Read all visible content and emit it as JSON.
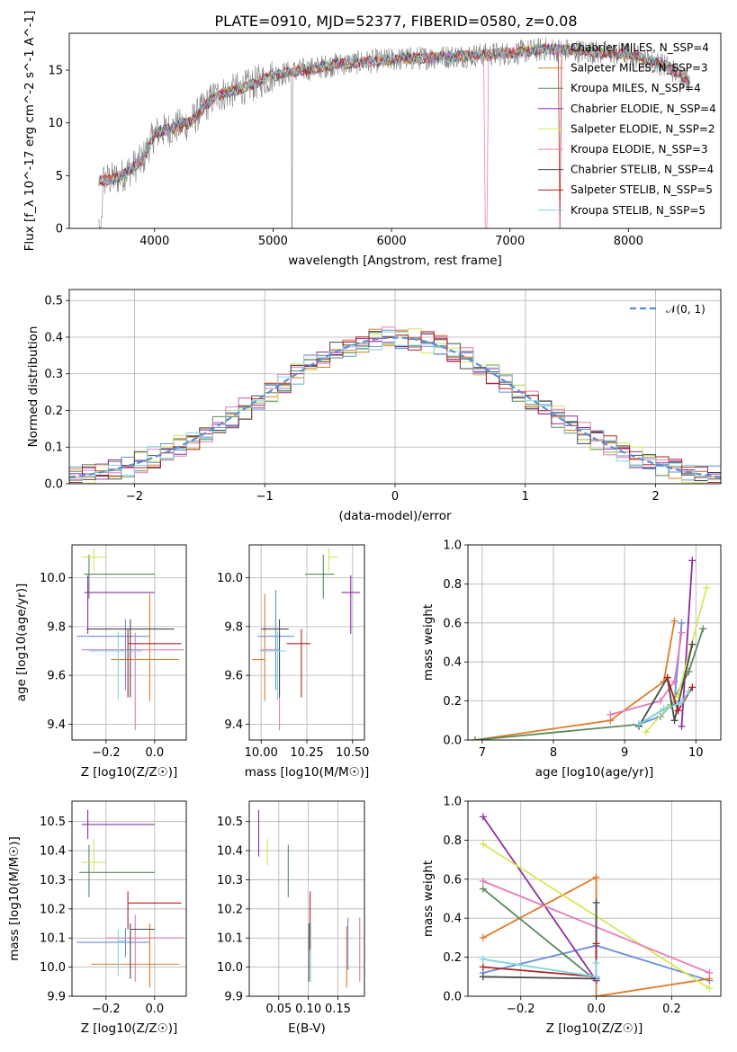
{
  "figure_title": "PLATE=0910, MJD=52377, FIBERID=0580, z=0.08",
  "colors": [
    "#6a8fd8",
    "#e07b2a",
    "#5a8a5a",
    "#8e2fa3",
    "#d4e85a",
    "#e57bb8",
    "#4a4a4a",
    "#b22222",
    "#7fd6e0"
  ],
  "chart_data": [
    {
      "id": "spectrum",
      "type": "line",
      "title": "PLATE=0910, MJD=52377, FIBERID=0580, z=0.08",
      "xlabel": "wavelength [Angstrom, rest frame]",
      "ylabel": "Flux [f_λ 10^-17 erg cm^-2 s^-1 A^-1]",
      "xlim": [
        3280,
        8780
      ],
      "ylim": [
        0,
        18.5
      ],
      "xticks": [
        4000,
        5000,
        6000,
        7000,
        8000
      ],
      "yticks": [
        0,
        5,
        10,
        15
      ],
      "grid": false,
      "legend_position": "top-right",
      "data_color": "#808080",
      "continuum": [
        [
          3530,
          4.5
        ],
        [
          3700,
          4.8
        ],
        [
          3900,
          6.5
        ],
        [
          4000,
          9
        ],
        [
          4300,
          10
        ],
        [
          4500,
          12.5
        ],
        [
          4800,
          13.5
        ],
        [
          5000,
          14.5
        ],
        [
          5500,
          15.5
        ],
        [
          6000,
          16
        ],
        [
          6500,
          16.3
        ],
        [
          7000,
          16.6
        ],
        [
          7300,
          17
        ],
        [
          7600,
          16.8
        ],
        [
          8000,
          16.5
        ],
        [
          8300,
          15.5
        ],
        [
          8520,
          14
        ]
      ],
      "legend": [
        "Chabrier MILES, N_SSP=4",
        "Salpeter MILES, N_SSP=3",
        "Kroupa MILES, N_SSP=4",
        "Chabrier ELODIE, N_SSP=4",
        "Salpeter ELODIE, N_SSP=2",
        "Kroupa ELODIE, N_SSP=3",
        "Chabrier STELIB, N_SSP=4",
        "Salpeter STELIB, N_SSP=5",
        "Kroupa STELIB, N_SSP=5"
      ]
    },
    {
      "id": "residuals",
      "type": "line",
      "xlabel": "(data-model)/error",
      "ylabel": "Normed distribution",
      "xlim": [
        -2.5,
        2.5
      ],
      "ylim": [
        0,
        0.53
      ],
      "xticks": [
        -2,
        -1,
        0,
        1,
        2
      ],
      "yticks": [
        0.0,
        0.1,
        0.2,
        0.3,
        0.4,
        0.5
      ],
      "grid": true,
      "legend_position": "top-right",
      "gaussian_label": "𝒩(0, 1)",
      "gaussian_color": "#5b8fd4"
    },
    {
      "id": "age-vs-z",
      "type": "scatter",
      "xlabel": "Z [log10(Z/Z☉)]",
      "ylabel": "age [log10(age/yr)]",
      "xlim": [
        -0.34,
        0.13
      ],
      "ylim": [
        9.335,
        10.135
      ],
      "xticks": [
        -0.2,
        0.0
      ],
      "yticks": [
        9.4,
        9.6,
        9.8,
        10.0
      ],
      "grid": true,
      "points": [
        {
          "x": -0.12,
          "y": 9.76,
          "xerr": [
            0.2,
            0.1
          ],
          "yerr": [
            0.22,
            0.07
          ]
        },
        {
          "x": -0.02,
          "y": 9.665,
          "xerr": [
            0.16,
            0.12
          ],
          "yerr": [
            0.17,
            0.27
          ]
        },
        {
          "x": -0.27,
          "y": 10.015,
          "xerr": [
            0.02,
            0.27
          ],
          "yerr": [
            0.1,
            0.08
          ]
        },
        {
          "x": -0.275,
          "y": 9.94,
          "xerr": [
            0.015,
            0.275
          ],
          "yerr": [
            0.17,
            0.07
          ]
        },
        {
          "x": -0.25,
          "y": 10.085,
          "xerr": [
            0.05,
            0.05
          ],
          "yerr": [
            0.06,
            0.04
          ]
        },
        {
          "x": -0.08,
          "y": 9.705,
          "xerr": [
            0.22,
            0.2
          ],
          "yerr": [
            0.33,
            0.07
          ]
        },
        {
          "x": -0.1,
          "y": 9.79,
          "xerr": [
            0.18,
            0.18
          ],
          "yerr": [
            0.28,
            0.04
          ]
        },
        {
          "x": -0.11,
          "y": 9.73,
          "xerr": [
            0.0,
            0.22
          ],
          "yerr": [
            0.22,
            0.06
          ]
        },
        {
          "x": -0.15,
          "y": 9.7,
          "xerr": [
            0.12,
            0.1
          ],
          "yerr": [
            0.2,
            0.08
          ]
        }
      ]
    },
    {
      "id": "age-vs-mass",
      "type": "scatter",
      "xlabel": "mass [log10(M/M☉)]",
      "ylabel": "",
      "xlim": [
        9.935,
        10.565
      ],
      "ylim": [
        9.335,
        10.135
      ],
      "xticks": [
        10.0,
        10.25,
        10.5
      ],
      "yticks": [
        9.4,
        9.6,
        9.8,
        10.0
      ],
      "grid": true,
      "points": [
        {
          "x": 10.08,
          "y": 9.76,
          "xerr": [
            0.1,
            0.1
          ],
          "yerr": [
            0.22,
            0.19
          ]
        },
        {
          "x": 10.02,
          "y": 9.665,
          "xerr": [
            0.07,
            0.0
          ],
          "yerr": [
            0.17,
            0.27
          ]
        },
        {
          "x": 10.34,
          "y": 10.015,
          "xerr": [
            0.1,
            0.06
          ],
          "yerr": [
            0.1,
            0.08
          ]
        },
        {
          "x": 10.49,
          "y": 9.94,
          "xerr": [
            0.05,
            0.05
          ],
          "yerr": [
            0.17,
            0.07
          ]
        },
        {
          "x": 10.37,
          "y": 10.085,
          "xerr": [
            0.0,
            0.05
          ],
          "yerr": [
            0.06,
            0.04
          ]
        },
        {
          "x": 10.1,
          "y": 9.705,
          "xerr": [
            0.1,
            0.0
          ],
          "yerr": [
            0.33,
            0.07
          ]
        },
        {
          "x": 10.1,
          "y": 9.79,
          "xerr": [
            0.1,
            0.05
          ],
          "yerr": [
            0.28,
            0.04
          ]
        },
        {
          "x": 10.22,
          "y": 9.73,
          "xerr": [
            0.08,
            0.05
          ],
          "yerr": [
            0.22,
            0.06
          ]
        },
        {
          "x": 10.09,
          "y": 9.7,
          "xerr": [
            0.1,
            0.05
          ],
          "yerr": [
            0.2,
            0.08
          ]
        }
      ]
    },
    {
      "id": "massweight-vs-age",
      "type": "line",
      "xlabel": "age [log10(age/yr)]",
      "ylabel": "mass weight",
      "xlim": [
        6.8,
        10.35
      ],
      "ylim": [
        0.0,
        1.0
      ],
      "xticks": [
        7,
        8,
        9,
        10
      ],
      "yticks": [
        0.0,
        0.2,
        0.4,
        0.6,
        0.8,
        1.0
      ],
      "grid": true,
      "series": [
        {
          "x": [
            9.2,
            9.5,
            9.7,
            9.8
          ],
          "y": [
            0.08,
            0.12,
            0.2,
            0.6
          ]
        },
        {
          "x": [
            6.9,
            8.8,
            9.55,
            9.7
          ],
          "y": [
            0.0,
            0.1,
            0.3,
            0.61
          ]
        },
        {
          "x": [
            6.9,
            9.2,
            9.65,
            9.9,
            10.1
          ],
          "y": [
            0.0,
            0.08,
            0.18,
            0.35,
            0.57
          ]
        },
        {
          "x": [
            9.8,
            9.95
          ],
          "y": [
            0.07,
            0.92
          ]
        },
        {
          "x": [
            9.3,
            9.75,
            10.15
          ],
          "y": [
            0.04,
            0.23,
            0.78
          ]
        },
        {
          "x": [
            8.8,
            9.5,
            9.7,
            9.8
          ],
          "y": [
            0.13,
            0.2,
            0.3,
            0.55
          ]
        },
        {
          "x": [
            9.2,
            9.6,
            9.7,
            9.95
          ],
          "y": [
            0.07,
            0.32,
            0.1,
            0.49
          ]
        },
        {
          "x": [
            9.6,
            9.75,
            9.95
          ],
          "y": [
            0.32,
            0.15,
            0.27
          ]
        },
        {
          "x": [
            9.2,
            9.55,
            9.8,
            9.9
          ],
          "y": [
            0.08,
            0.16,
            0.19,
            0.25
          ]
        }
      ]
    },
    {
      "id": "mass-vs-z",
      "type": "scatter",
      "xlabel": "Z [log10(Z/Z☉)]",
      "ylabel": "mass [log10(M/M☉)]",
      "xlim": [
        -0.34,
        0.13
      ],
      "ylim": [
        9.9,
        10.57
      ],
      "xticks": [
        -0.2,
        0.0
      ],
      "yticks": [
        9.9,
        10.0,
        10.1,
        10.2,
        10.3,
        10.4,
        10.5
      ],
      "grid": true,
      "points": [
        {
          "x": -0.12,
          "y": 10.085,
          "xerr": [
            0.2,
            0.1
          ],
          "yerr": [
            0.05,
            0.05
          ]
        },
        {
          "x": -0.02,
          "y": 10.01,
          "xerr": [
            0.24,
            0.12
          ],
          "yerr": [
            0.08,
            0.14
          ]
        },
        {
          "x": -0.27,
          "y": 10.325,
          "xerr": [
            0.04,
            0.27
          ],
          "yerr": [
            0.085,
            0.095
          ]
        },
        {
          "x": -0.275,
          "y": 10.49,
          "xerr": [
            0.025,
            0.275
          ],
          "yerr": [
            0.05,
            0.05
          ]
        },
        {
          "x": -0.25,
          "y": 10.36,
          "xerr": [
            0.05,
            0.05
          ],
          "yerr": [
            0.03,
            0.08
          ]
        },
        {
          "x": -0.08,
          "y": 10.1,
          "xerr": [
            0.12,
            0.2
          ],
          "yerr": [
            0.15,
            0.08
          ]
        },
        {
          "x": -0.1,
          "y": 10.13,
          "xerr": [
            0.0,
            0.1
          ],
          "yerr": [
            0.17,
            0.02
          ]
        },
        {
          "x": -0.11,
          "y": 10.22,
          "xerr": [
            0.0,
            0.22
          ],
          "yerr": [
            0.09,
            0.04
          ]
        },
        {
          "x": -0.15,
          "y": 10.09,
          "xerr": [
            0.0,
            0.03
          ],
          "yerr": [
            0.12,
            0.04
          ]
        }
      ]
    },
    {
      "id": "mass-vs-ebv",
      "type": "scatter",
      "xlabel": "E(B-V)",
      "ylabel": "",
      "xlim": [
        0.0,
        0.195
      ],
      "ylim": [
        9.9,
        10.57
      ],
      "xticks": [
        0.05,
        0.1,
        0.15
      ],
      "yticks": [
        9.9,
        10.0,
        10.1,
        10.2,
        10.3,
        10.4,
        10.5
      ],
      "grid": true,
      "points": [
        {
          "x": 0.167,
          "y": 10.07,
          "xerr": [
            0.0,
            0.0
          ],
          "yerr": [
            0.08,
            0.1
          ]
        },
        {
          "x": 0.165,
          "y": 10.04,
          "xerr": [
            0.0,
            0.0
          ],
          "yerr": [
            0.11,
            0.1
          ]
        },
        {
          "x": 0.066,
          "y": 10.33,
          "xerr": [
            0.0,
            0.0
          ],
          "yerr": [
            0.09,
            0.09
          ]
        },
        {
          "x": 0.016,
          "y": 10.46,
          "xerr": [
            0.0,
            0.0
          ],
          "yerr": [
            0.08,
            0.08
          ]
        },
        {
          "x": 0.031,
          "y": 10.39,
          "xerr": [
            0.0,
            0.0
          ],
          "yerr": [
            0.04,
            0.05
          ]
        },
        {
          "x": 0.187,
          "y": 10.06,
          "xerr": [
            0.0,
            0.0
          ],
          "yerr": [
            0.11,
            0.11
          ]
        },
        {
          "x": 0.101,
          "y": 10.05,
          "xerr": [
            0.0,
            0.0
          ],
          "yerr": [
            0.1,
            0.1
          ]
        },
        {
          "x": 0.103,
          "y": 10.16,
          "xerr": [
            0.0,
            0.0
          ],
          "yerr": [
            0.1,
            0.1
          ]
        },
        {
          "x": 0.104,
          "y": 10.05,
          "xerr": [
            0.0,
            0.0
          ],
          "yerr": [
            0.1,
            0.1
          ]
        }
      ]
    },
    {
      "id": "massweight-vs-z",
      "type": "line",
      "xlabel": "Z [log10(Z/Z☉)]",
      "ylabel": "mass weight",
      "xlim": [
        -0.34,
        0.33
      ],
      "ylim": [
        0.0,
        1.0
      ],
      "xticks": [
        -0.2,
        0.0,
        0.2
      ],
      "yticks": [
        0.0,
        0.2,
        0.4,
        0.6,
        0.8,
        1.0
      ],
      "grid": true,
      "series": [
        {
          "x": [
            -0.3,
            0.0,
            0.3
          ],
          "y": [
            0.12,
            0.26,
            0.08
          ]
        },
        {
          "x": [
            -0.3,
            0.0,
            0.0,
            0.3
          ],
          "y": [
            0.3,
            0.61,
            0.0,
            0.09
          ]
        },
        {
          "x": [
            -0.3,
            0.0,
            0.0
          ],
          "y": [
            0.55,
            0.08,
            0.1
          ]
        },
        {
          "x": [
            -0.3,
            0.0
          ],
          "y": [
            0.92,
            0.08
          ]
        },
        {
          "x": [
            -0.3,
            0.3
          ],
          "y": [
            0.78,
            0.04
          ]
        },
        {
          "x": [
            -0.3,
            0.3
          ],
          "y": [
            0.59,
            0.12
          ]
        },
        {
          "x": [
            -0.3,
            0.0,
            0.0
          ],
          "y": [
            0.1,
            0.09,
            0.48
          ]
        },
        {
          "x": [
            -0.3,
            0.0,
            0.0
          ],
          "y": [
            0.15,
            0.1,
            0.27
          ]
        },
        {
          "x": [
            -0.3,
            0.0,
            0.0
          ],
          "y": [
            0.19,
            0.1,
            0.17
          ]
        }
      ]
    }
  ]
}
